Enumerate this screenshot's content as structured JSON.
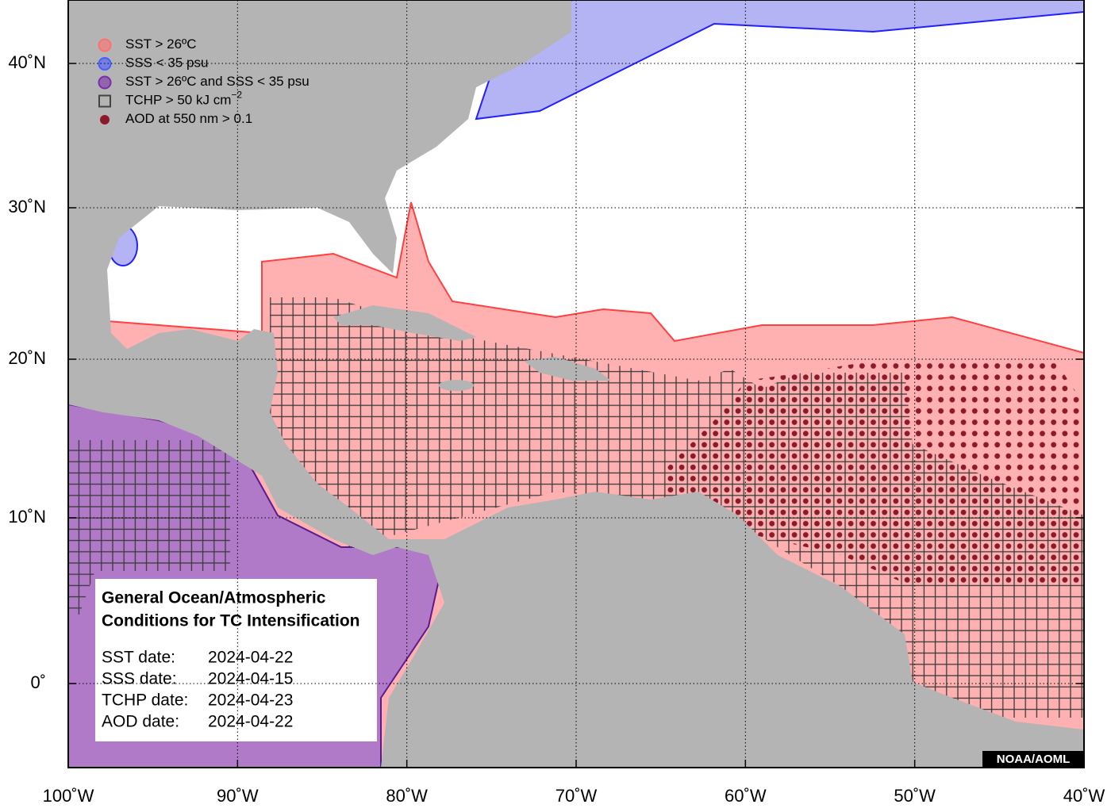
{
  "map": {
    "lon_ticks": [
      {
        "value": -100,
        "label": "100˚W"
      },
      {
        "value": -90,
        "label": "90˚W"
      },
      {
        "value": -80,
        "label": "80˚W"
      },
      {
        "value": -70,
        "label": "70˚W"
      },
      {
        "value": -60,
        "label": "60˚W"
      },
      {
        "value": -50,
        "label": "50˚W"
      },
      {
        "value": -40,
        "label": "40˚W"
      }
    ],
    "lat_ticks": [
      {
        "value": 0,
        "label": "0˚"
      },
      {
        "value": 10,
        "label": "10˚N"
      },
      {
        "value": 20,
        "label": "20˚N"
      },
      {
        "value": 30,
        "label": "30˚N"
      },
      {
        "value": 40,
        "label": "40˚N"
      }
    ],
    "legend": [
      {
        "label": "SST > 26ºC",
        "color": "#ff6f6f"
      },
      {
        "label": "SSS < 35 psu",
        "color": "#4a5cff"
      },
      {
        "label": "SST > 26ºC and SSS < 35 psu",
        "color": "#7a2fa8"
      },
      {
        "label": "TCHP > 50 kJ cm",
        "superscript": "−2",
        "color": "#444444"
      },
      {
        "label": "AOD at 550 nm > 0.1",
        "color": "#8b1a2b"
      }
    ],
    "info_box": {
      "title": [
        "General Ocean/Atmospheric",
        "Conditions for TC Intensification"
      ],
      "dates": [
        {
          "label": "SST date:",
          "value": "2024-04-22"
        },
        {
          "label": "SSS date:",
          "value": "2024-04-15"
        },
        {
          "label": "TCHP date:",
          "value": "2024-04-23"
        },
        {
          "label": "AOD date:",
          "value": "2024-04-22"
        }
      ]
    },
    "credit": "NOAA/AOML"
  }
}
